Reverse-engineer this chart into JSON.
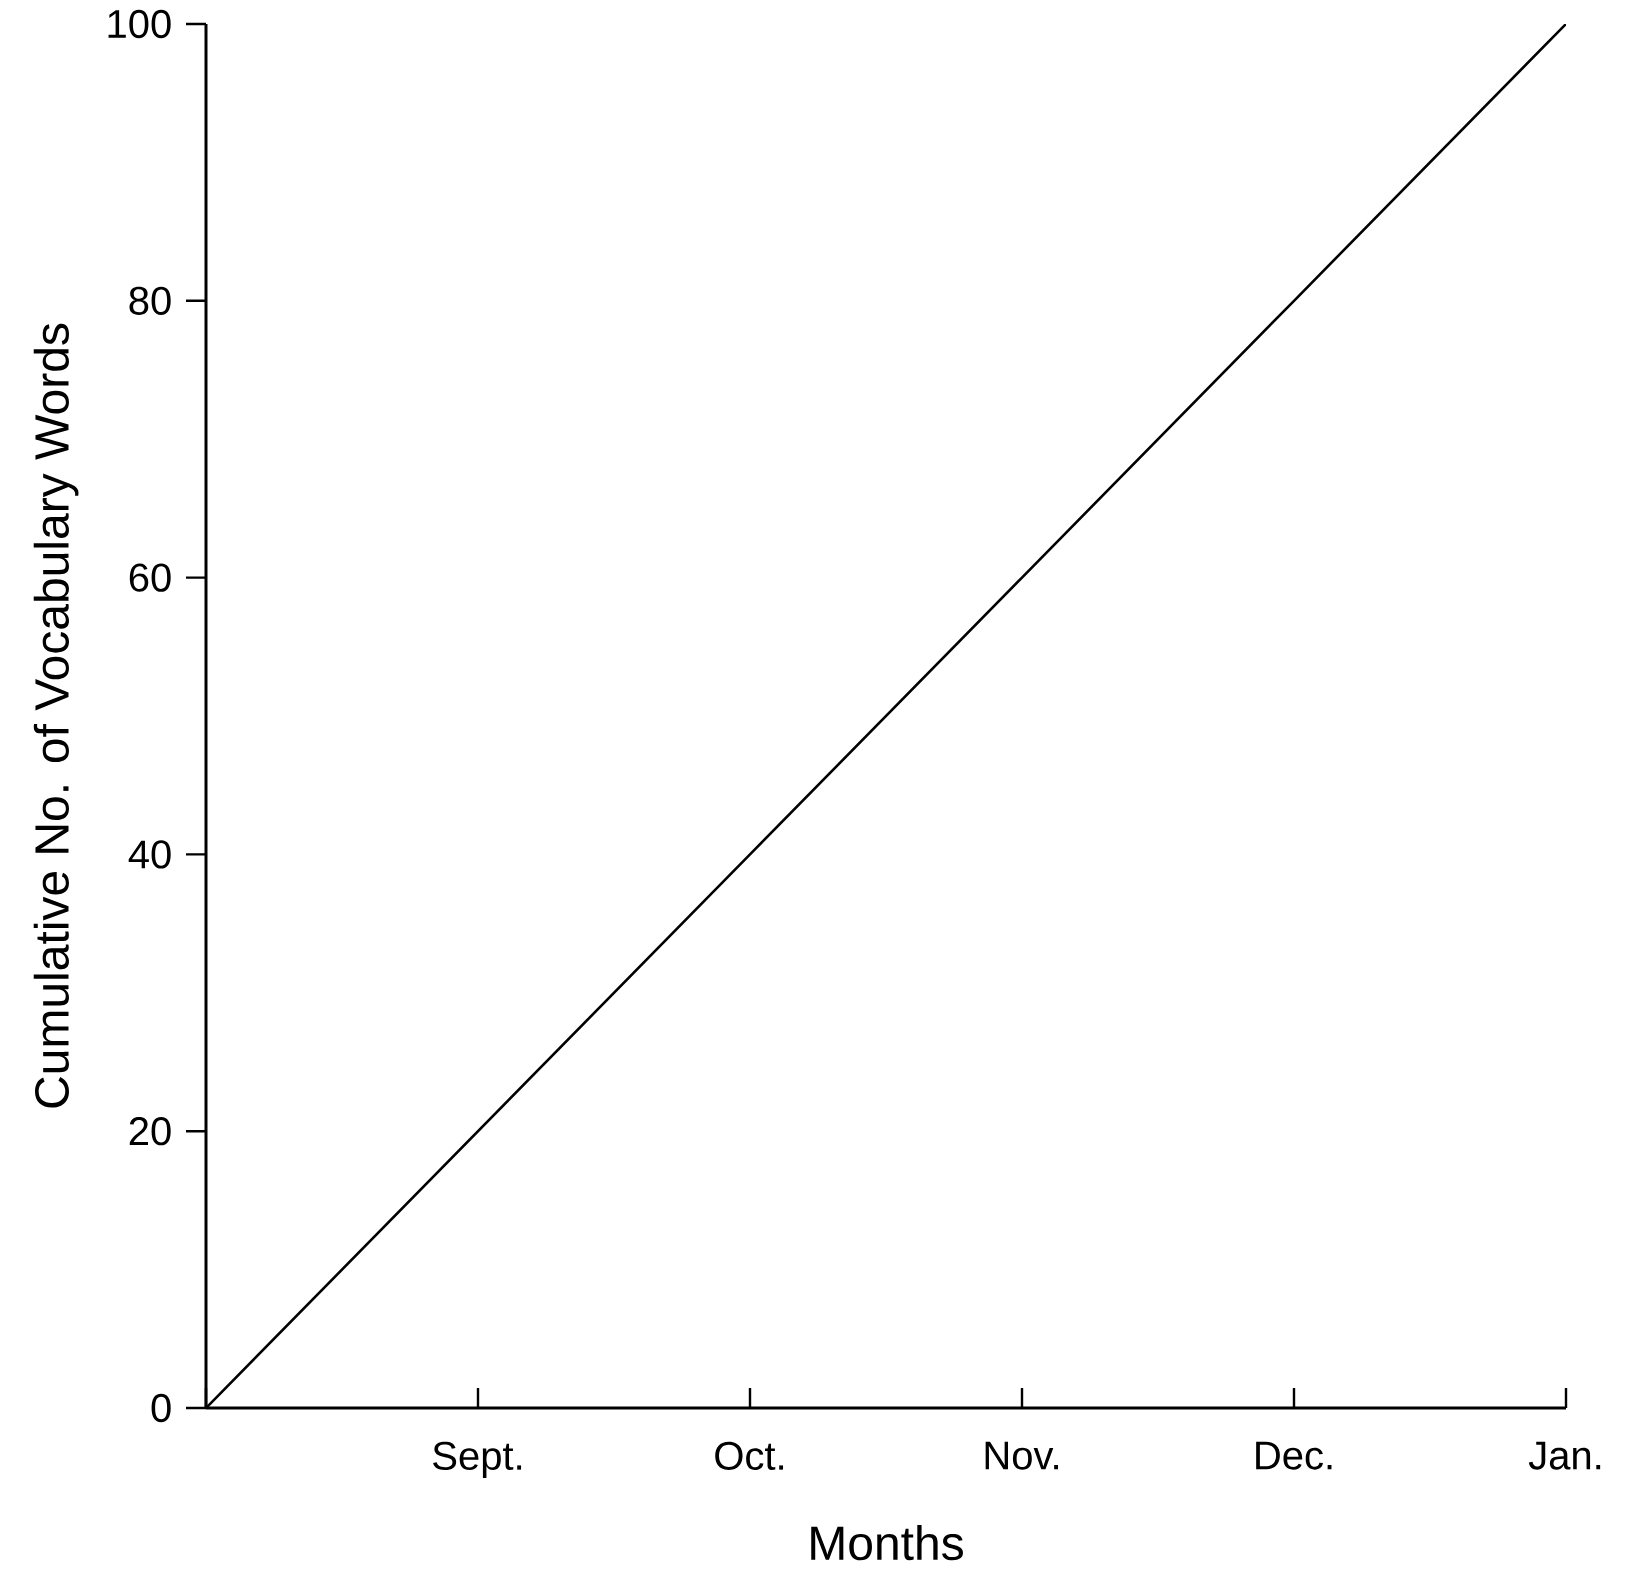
{
  "chart_data": {
    "type": "line",
    "xlabel": "Months",
    "ylabel": "Cumulative No. of Vocabulary Words",
    "categories": [
      null,
      "Sept.",
      "Oct.",
      "Nov.",
      "Dec.",
      "Jan."
    ],
    "values": [
      0,
      20,
      40,
      60,
      80,
      100
    ],
    "color": "#000000",
    "marker": "none",
    "line_style": "solid",
    "grid": false,
    "ylim": [
      0,
      100
    ],
    "yticks": [
      0,
      20,
      40,
      60,
      80,
      100
    ]
  }
}
